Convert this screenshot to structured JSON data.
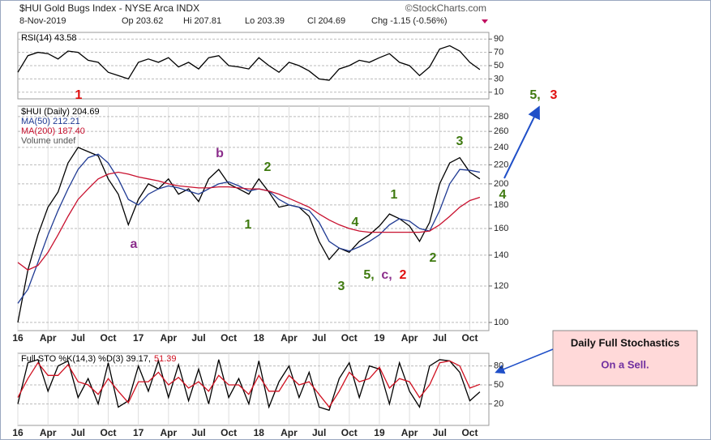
{
  "header": {
    "title": "$HUI Gold Bugs Index - NYSE Arca INDX",
    "source": "©StockCharts.com",
    "date": "8-Nov-2019",
    "open": "Op 203.62",
    "high": "Hi 207.81",
    "low": "Lo 203.39",
    "close": "Cl 204.69",
    "change": "Chg -1.15 (-0.56%)"
  },
  "chart_data": [
    {
      "type": "line",
      "xlim": [
        0,
        46.9
      ],
      "ylim": [
        0,
        100
      ],
      "yticks": [
        10,
        30,
        50,
        70,
        90
      ],
      "grid": true,
      "x": [
        0,
        1,
        2,
        3,
        4,
        5,
        6,
        7,
        8,
        9,
        10,
        11,
        12,
        13,
        14,
        15,
        16,
        17,
        18,
        19,
        20,
        21,
        22,
        23,
        24,
        25,
        26,
        27,
        28,
        29,
        30,
        31,
        32,
        33,
        34,
        35,
        36,
        37,
        38,
        39,
        40,
        41,
        42,
        43,
        44,
        45,
        46
      ],
      "series": [
        {
          "name": "RSI(14) 43.58",
          "color": "#000000",
          "values": [
            40,
            65,
            70,
            68,
            60,
            72,
            70,
            58,
            55,
            40,
            35,
            30,
            55,
            60,
            55,
            62,
            48,
            55,
            45,
            62,
            65,
            50,
            48,
            45,
            62,
            50,
            40,
            55,
            50,
            42,
            30,
            28,
            45,
            50,
            58,
            55,
            62,
            68,
            55,
            50,
            35,
            48,
            75,
            80,
            72,
            55,
            44
          ]
        }
      ]
    },
    {
      "type": "line",
      "log_scale": true,
      "grid": true,
      "xlim": [
        0,
        46.9
      ],
      "ylim": [
        96,
        295
      ],
      "yticks": [
        100,
        120,
        140,
        160,
        180,
        200,
        220,
        240,
        260,
        280
      ],
      "xticks": [
        {
          "value": 0,
          "label": "16"
        },
        {
          "value": 3,
          "label": "Apr"
        },
        {
          "value": 6,
          "label": "Jul"
        },
        {
          "value": 9,
          "label": "Oct"
        },
        {
          "value": 12,
          "label": "17"
        },
        {
          "value": 15,
          "label": "Apr"
        },
        {
          "value": 18,
          "label": "Jul"
        },
        {
          "value": 21,
          "label": "Oct"
        },
        {
          "value": 24,
          "label": "18"
        },
        {
          "value": 27,
          "label": "Apr"
        },
        {
          "value": 30,
          "label": "Jul"
        },
        {
          "value": 33,
          "label": "Oct"
        },
        {
          "value": 36,
          "label": "19"
        },
        {
          "value": 39,
          "label": "Apr"
        },
        {
          "value": 42,
          "label": "Jul"
        },
        {
          "value": 45,
          "label": "Oct"
        }
      ],
      "x": [
        0,
        1,
        2,
        3,
        4,
        5,
        6,
        7,
        8,
        9,
        10,
        11,
        12,
        13,
        14,
        15,
        16,
        17,
        18,
        19,
        20,
        21,
        22,
        23,
        24,
        25,
        26,
        27,
        28,
        29,
        30,
        31,
        32,
        33,
        34,
        35,
        36,
        37,
        38,
        39,
        40,
        41,
        42,
        43,
        44,
        45,
        46
      ],
      "series": [
        {
          "name": "$HUI (Daily) 204.69",
          "color": "#000000",
          "values": [
            100,
            130,
            155,
            178,
            192,
            222,
            240,
            235,
            230,
            205,
            190,
            163,
            185,
            200,
            195,
            205,
            190,
            195,
            183,
            205,
            215,
            200,
            195,
            190,
            205,
            192,
            178,
            180,
            178,
            170,
            150,
            137,
            145,
            142,
            150,
            155,
            162,
            172,
            168,
            162,
            150,
            165,
            200,
            222,
            228,
            212,
            205
          ]
        },
        {
          "name": "MA(50) 212.21",
          "color": "#1f3a93",
          "values": [
            110,
            118,
            135,
            155,
            175,
            195,
            215,
            228,
            232,
            222,
            205,
            185,
            180,
            190,
            195,
            198,
            196,
            193,
            190,
            195,
            200,
            202,
            198,
            193,
            195,
            193,
            185,
            180,
            178,
            175,
            165,
            150,
            145,
            143,
            146,
            150,
            155,
            163,
            168,
            166,
            160,
            158,
            175,
            200,
            215,
            214,
            212
          ]
        },
        {
          "name": "MA(200) 187.40",
          "color": "#c8102e",
          "values": [
            135,
            130,
            133,
            142,
            155,
            170,
            185,
            195,
            205,
            210,
            212,
            210,
            207,
            205,
            203,
            200,
            198,
            197,
            196,
            196,
            197,
            197,
            196,
            195,
            195,
            193,
            190,
            186,
            182,
            178,
            172,
            167,
            163,
            160,
            158,
            157,
            157,
            157,
            157,
            157,
            157,
            158,
            163,
            170,
            178,
            184,
            187
          ]
        }
      ],
      "volume_label": "Volume undef",
      "annotations": [
        {
          "text": "1",
          "color": "#e01010"
        },
        {
          "text": "5,",
          "color": "#3f7a10"
        },
        {
          "text": "3",
          "color": "#e01010"
        },
        {
          "text": "b",
          "color": "#8b2d8b"
        },
        {
          "text": "2",
          "color": "#3f7a10"
        },
        {
          "text": "1",
          "color": "#3f7a10"
        },
        {
          "text": "a",
          "color": "#8b2d8b"
        },
        {
          "text": "4",
          "color": "#3f7a10"
        },
        {
          "text": "3",
          "color": "#3f7a10"
        },
        {
          "text": "5,",
          "color": "#3f7a10"
        },
        {
          "text": "c,",
          "color": "#8b2d8b"
        },
        {
          "text": "2",
          "color": "#e01010"
        },
        {
          "text": "1",
          "color": "#3f7a10"
        },
        {
          "text": "3",
          "color": "#3f7a10"
        },
        {
          "text": "4",
          "color": "#3f7a10"
        },
        {
          "text": "2",
          "color": "#3f7a10"
        }
      ]
    },
    {
      "type": "line",
      "grid": true,
      "xlim": [
        0,
        46.9
      ],
      "ylim": [
        -14,
        100
      ],
      "yticks": [
        20,
        50,
        80
      ],
      "xticks": [
        {
          "value": 0,
          "label": "16"
        },
        {
          "value": 3,
          "label": "Apr"
        },
        {
          "value": 6,
          "label": "Jul"
        },
        {
          "value": 9,
          "label": "Oct"
        },
        {
          "value": 12,
          "label": "17"
        },
        {
          "value": 15,
          "label": "Apr"
        },
        {
          "value": 18,
          "label": "Jul"
        },
        {
          "value": 21,
          "label": "Oct"
        },
        {
          "value": 24,
          "label": "18"
        },
        {
          "value": 27,
          "label": "Apr"
        },
        {
          "value": 30,
          "label": "Jul"
        },
        {
          "value": 33,
          "label": "Oct"
        },
        {
          "value": 36,
          "label": "19"
        },
        {
          "value": 39,
          "label": "Apr"
        },
        {
          "value": 42,
          "label": "Jul"
        },
        {
          "value": 45,
          "label": "Oct"
        }
      ],
      "x": [
        0,
        1,
        2,
        3,
        4,
        5,
        6,
        7,
        8,
        9,
        10,
        11,
        12,
        13,
        14,
        15,
        16,
        17,
        18,
        19,
        20,
        21,
        22,
        23,
        24,
        25,
        26,
        27,
        28,
        29,
        30,
        31,
        32,
        33,
        34,
        35,
        36,
        37,
        38,
        39,
        40,
        41,
        42,
        43,
        44,
        45,
        46
      ],
      "series": [
        {
          "name": "Full STO %K(14,3) %D(3) 39.17,",
          "color": "#000000",
          "values": [
            20,
            85,
            90,
            40,
            80,
            88,
            30,
            60,
            20,
            85,
            15,
            25,
            80,
            40,
            88,
            30,
            82,
            25,
            75,
            20,
            90,
            30,
            60,
            20,
            88,
            15,
            55,
            80,
            30,
            70,
            15,
            10,
            60,
            85,
            30,
            80,
            75,
            20,
            85,
            40,
            15,
            80,
            90,
            88,
            70,
            25,
            39
          ]
        },
        {
          "name": "51.39",
          "color": "#d01020",
          "values": [
            30,
            60,
            85,
            65,
            65,
            82,
            55,
            50,
            35,
            60,
            40,
            22,
            55,
            55,
            70,
            50,
            62,
            45,
            55,
            40,
            65,
            50,
            50,
            35,
            65,
            40,
            40,
            65,
            50,
            55,
            35,
            15,
            40,
            70,
            55,
            60,
            78,
            45,
            60,
            55,
            30,
            50,
            85,
            88,
            80,
            45,
            51
          ]
        }
      ]
    }
  ],
  "callout": {
    "title": "Daily Full Stochastics",
    "text": "On a Sell."
  }
}
